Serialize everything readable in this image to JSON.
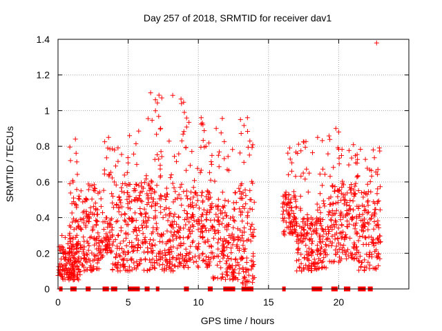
{
  "chart_data": {
    "type": "scatter",
    "title": "Day 257 of 2018, SRMTID for receiver dav1",
    "xlabel": "GPS time / hours",
    "ylabel": "SRMTID / TECUs",
    "xlim": [
      0,
      25
    ],
    "ylim": [
      0,
      1.4
    ],
    "grid": true,
    "x_ticks": [
      0,
      5,
      10,
      15,
      20
    ],
    "x_tick_labels": [
      "0",
      "5",
      "10",
      "15",
      "20"
    ],
    "y_ticks": [
      0,
      0.2,
      0.4,
      0.6,
      0.8,
      1.0,
      1.2,
      1.4
    ],
    "y_tick_labels": [
      "0",
      "0.2",
      "0.4",
      "0.6",
      "0.8",
      "1",
      "1.2",
      "1.4"
    ],
    "marker": "+",
    "marker_color": "#ff0000",
    "data_segments": [
      {
        "x_start": 0.0,
        "x_end": 1.5,
        "base_min": 0.05,
        "base_max": 0.22,
        "tail_max": 0.3
      },
      {
        "x_start": 0.8,
        "x_end": 1.6,
        "base_min": 0.05,
        "base_max": 0.62,
        "tail_max": 0.85
      },
      {
        "x_start": 1.6,
        "x_end": 3.2,
        "base_min": 0.1,
        "base_max": 0.45,
        "tail_max": 0.6
      },
      {
        "x_start": 3.2,
        "x_end": 3.8,
        "base_min": 0.2,
        "base_max": 0.4,
        "tail_max": 0.85
      },
      {
        "x_start": 3.8,
        "x_end": 5.0,
        "base_min": 0.1,
        "base_max": 0.6,
        "tail_max": 0.8
      },
      {
        "x_start": 5.0,
        "x_end": 9.0,
        "base_min": 0.1,
        "base_max": 0.6,
        "tail_max": 1.1
      },
      {
        "x_start": 9.0,
        "x_end": 11.0,
        "base_min": 0.12,
        "base_max": 0.55,
        "tail_max": 0.96
      },
      {
        "x_start": 11.0,
        "x_end": 12.6,
        "base_min": 0.05,
        "base_max": 0.5,
        "tail_max": 0.96
      },
      {
        "x_start": 12.6,
        "x_end": 14.0,
        "base_min": 0.02,
        "base_max": 0.6,
        "tail_max": 0.95
      },
      {
        "x_start": 16.0,
        "x_end": 17.0,
        "base_min": 0.3,
        "base_max": 0.55,
        "tail_max": 0.85
      },
      {
        "x_start": 17.0,
        "x_end": 19.2,
        "base_min": 0.1,
        "base_max": 0.4,
        "tail_max": 0.85
      },
      {
        "x_start": 19.2,
        "x_end": 21.2,
        "base_min": 0.15,
        "base_max": 0.6,
        "tail_max": 0.9
      },
      {
        "x_start": 21.2,
        "x_end": 23.0,
        "base_min": 0.1,
        "base_max": 0.55,
        "tail_max": 0.8
      }
    ],
    "highlighted_points": [
      {
        "x": 22.7,
        "y": 1.38
      },
      {
        "x": 6.6,
        "y": 1.1
      },
      {
        "x": 8.8,
        "y": 1.04
      },
      {
        "x": 9.0,
        "y": 0.99
      },
      {
        "x": 10.2,
        "y": 0.96
      },
      {
        "x": 13.0,
        "y": 0.95
      },
      {
        "x": 13.5,
        "y": 0.96
      },
      {
        "x": 19.8,
        "y": 0.9
      },
      {
        "x": 18.5,
        "y": 0.85
      },
      {
        "x": 3.6,
        "y": 0.85
      }
    ],
    "zero_values_x_ranges": [
      [
        0.1,
        0.3
      ],
      [
        0.9,
        1.3
      ],
      [
        2.0,
        2.3
      ],
      [
        3.2,
        3.6
      ],
      [
        3.8,
        4.2
      ],
      [
        5.0,
        5.8
      ],
      [
        6.2,
        6.5
      ],
      [
        7.0,
        7.2
      ],
      [
        9.0,
        9.3
      ],
      [
        10.7,
        11.0
      ],
      [
        11.8,
        12.6
      ],
      [
        13.1,
        13.9
      ],
      [
        16.0,
        16.2
      ],
      [
        18.1,
        18.8
      ],
      [
        19.5,
        19.9
      ],
      [
        20.4,
        20.8
      ],
      [
        21.4,
        21.9
      ],
      [
        22.1,
        22.4
      ]
    ]
  }
}
